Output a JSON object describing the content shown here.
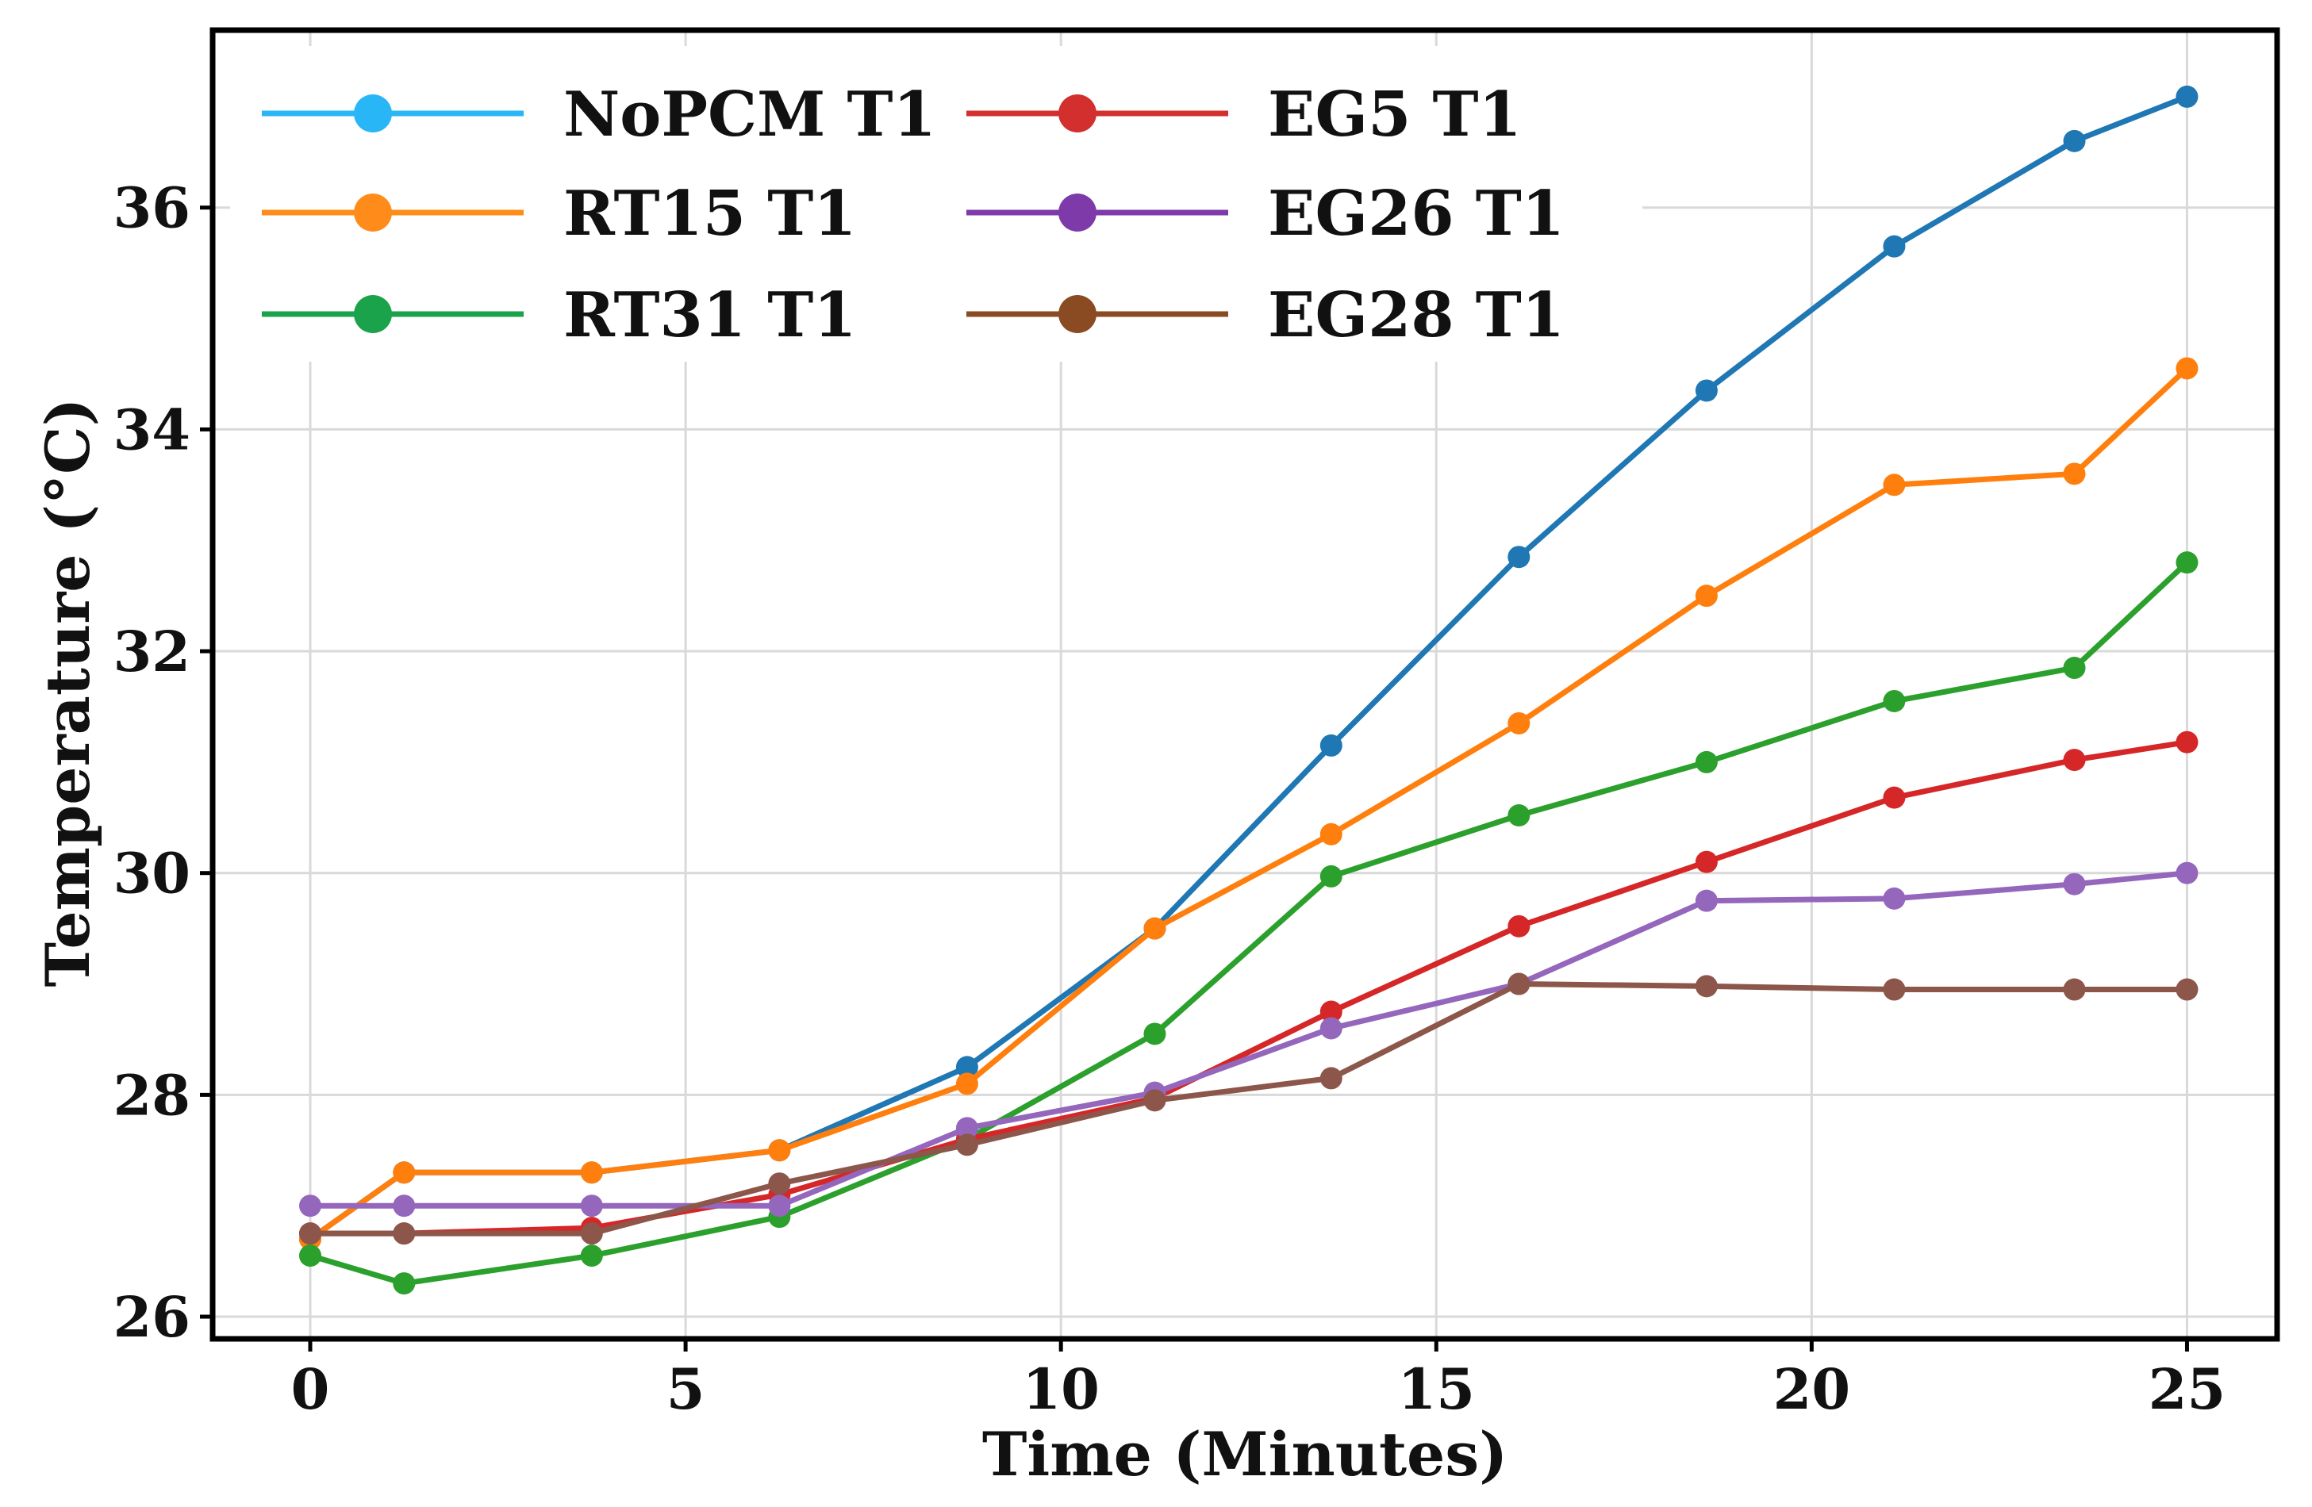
{
  "chart_data": {
    "type": "line",
    "title": "",
    "xlabel": "Time (Minutes)",
    "ylabel": "Temperature (°C)",
    "xlim": [
      -1.3,
      26.2
    ],
    "ylim": [
      25.8,
      37.6
    ],
    "xticks": [
      0,
      5,
      10,
      15,
      20,
      25
    ],
    "yticks": [
      26,
      28,
      30,
      32,
      34,
      36
    ],
    "xtick_labels": [
      "0",
      "5",
      "10",
      "15",
      "20",
      "25"
    ],
    "ytick_labels": [
      "26",
      "28",
      "30",
      "32",
      "34",
      "36"
    ],
    "grid": true,
    "legend_position": "top-left",
    "legend_columns": 2,
    "x": [
      0,
      1.25,
      3.75,
      6.25,
      8.75,
      11.25,
      13.6,
      16.1,
      18.6,
      21.1,
      23.5,
      25
    ],
    "series": [
      {
        "name": "NoPCM T1",
        "color": "#1f77b4",
        "legend_color": "#29b6f6",
        "values": [
          26.7,
          27.3,
          27.3,
          27.5,
          28.25,
          29.5,
          31.15,
          32.85,
          34.35,
          35.65,
          36.6,
          37.0
        ]
      },
      {
        "name": "RT15 T1",
        "color": "#ff7f0e",
        "legend_color": "#ff8c1a",
        "values": [
          26.7,
          27.3,
          27.3,
          27.5,
          28.1,
          29.5,
          30.35,
          31.35,
          32.5,
          33.5,
          33.6,
          34.55
        ]
      },
      {
        "name": "RT31 T1",
        "color": "#2ca02c",
        "legend_color": "#1aa34a",
        "values": [
          26.55,
          26.3,
          26.55,
          26.9,
          27.6,
          28.55,
          29.97,
          30.52,
          31.0,
          31.55,
          31.85,
          32.8
        ]
      },
      {
        "name": "EG5 T1",
        "color": "#d62728",
        "legend_color": "#d32f2f",
        "values": [
          26.75,
          26.75,
          26.8,
          27.1,
          27.6,
          27.97,
          28.75,
          29.52,
          30.1,
          30.68,
          31.02,
          31.18
        ]
      },
      {
        "name": "EG26 T1",
        "color": "#9467bd",
        "legend_color": "#7e3aa9",
        "values": [
          27.0,
          27.0,
          27.0,
          27.0,
          27.7,
          28.02,
          28.6,
          29.0,
          29.75,
          29.77,
          29.9,
          30.0
        ]
      },
      {
        "name": "EG28 T1",
        "color": "#8c564b",
        "legend_color": "#8a4b22",
        "values": [
          26.75,
          26.75,
          26.75,
          27.2,
          27.55,
          27.95,
          28.15,
          29.0,
          28.98,
          28.95,
          28.95,
          28.95
        ]
      }
    ]
  }
}
